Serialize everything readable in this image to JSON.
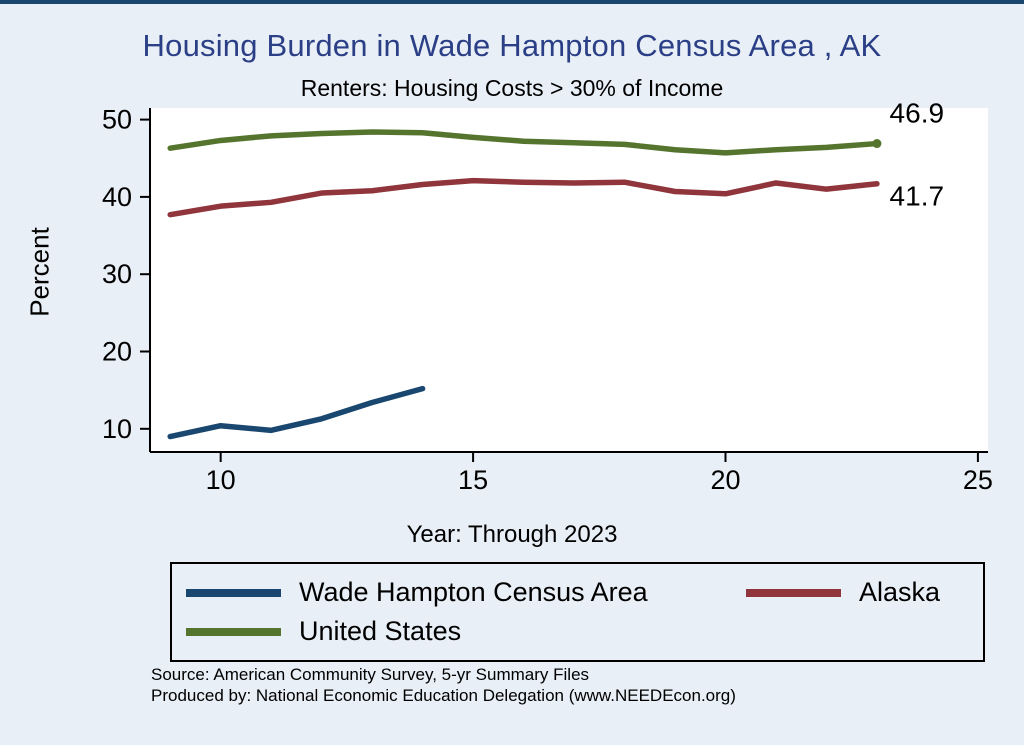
{
  "header": {
    "top_border_color": "#1a476f"
  },
  "chart_data": {
    "type": "line",
    "title": "Housing Burden in Wade Hampton Census Area , AK",
    "subtitle": "Renters: Housing Costs > 30% of Income",
    "xlabel": "Year: Through 2023",
    "ylabel": "Percent",
    "xlim": [
      8.6,
      25.2
    ],
    "ylim": [
      7,
      51.5
    ],
    "xticks": [
      10,
      15,
      20,
      25
    ],
    "yticks": [
      10,
      20,
      30,
      40,
      50
    ],
    "grid": false,
    "legend_position": "bottom",
    "plot_bg": "#ffffff",
    "series": [
      {
        "name": "Wade Hampton Census Area",
        "color": "#1a476f",
        "x": [
          9,
          10,
          11,
          12,
          13,
          14
        ],
        "values": [
          9.0,
          10.4,
          9.8,
          11.3,
          13.4,
          15.2
        ],
        "end_marker": false
      },
      {
        "name": "Alaska",
        "color": "#90353b",
        "x": [
          9,
          10,
          11,
          12,
          13,
          14,
          15,
          16,
          17,
          18,
          19,
          20,
          21,
          22,
          23
        ],
        "values": [
          37.7,
          38.8,
          39.3,
          40.5,
          40.8,
          41.6,
          42.1,
          41.9,
          41.8,
          41.9,
          40.7,
          40.4,
          41.8,
          41.0,
          41.7
        ],
        "end_marker": false
      },
      {
        "name": "United States",
        "color": "#55752f",
        "x": [
          9,
          10,
          11,
          12,
          13,
          14,
          15,
          16,
          17,
          18,
          19,
          20,
          21,
          22,
          23
        ],
        "values": [
          46.3,
          47.3,
          47.9,
          48.2,
          48.4,
          48.3,
          47.7,
          47.2,
          47.0,
          46.8,
          46.1,
          45.7,
          46.1,
          46.4,
          46.9
        ],
        "end_marker": true
      }
    ],
    "annotations": [
      {
        "text": "46.9",
        "x": 23.25,
        "y": 49.6
      },
      {
        "text": "41.7",
        "x": 23.25,
        "y": 38.9
      }
    ]
  },
  "footer": {
    "source_line1": "Source: American Community Survey, 5-yr Summary Files",
    "source_line2": "Produced by: National Economic Education Delegation (www.NEEDEcon.org)"
  }
}
